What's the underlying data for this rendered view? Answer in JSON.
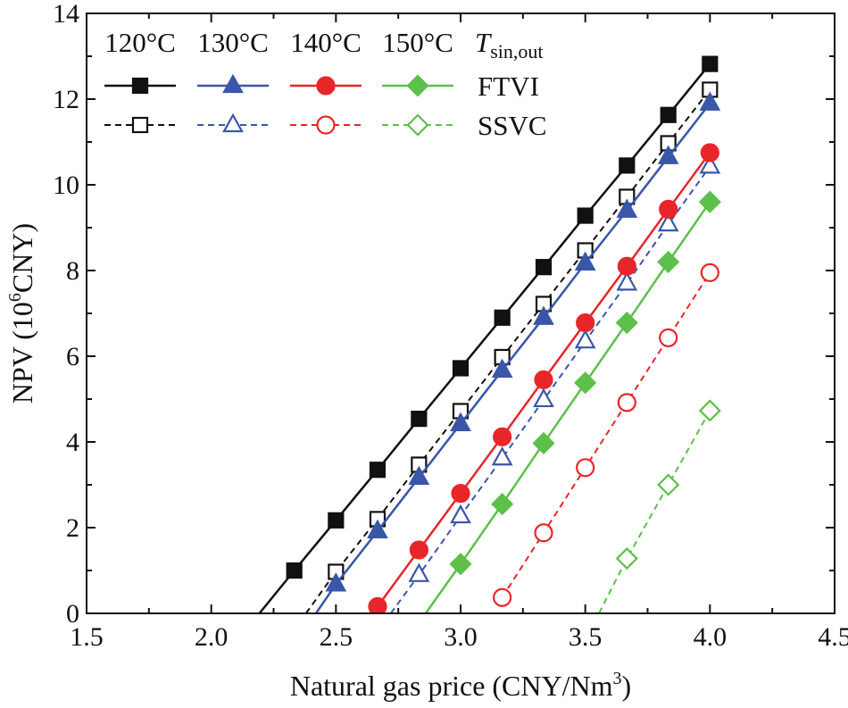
{
  "chart_data": {
    "type": "line",
    "title": "",
    "xlabel": "Natural gas price (CNY/Nm",
    "xlabel_sup": "3",
    "xlabel_end": ")",
    "ylabel": "NPV (10",
    "ylabel_sup": "6",
    "ylabel_end": "CNY)",
    "xlim": [
      1.5,
      4.5
    ],
    "ylim": [
      0,
      14
    ],
    "xticks": [
      1.5,
      2.0,
      2.5,
      3.0,
      3.5,
      4.0,
      4.5
    ],
    "xtick_labels": [
      "1.5",
      "2.0",
      "2.5",
      "3.0",
      "3.5",
      "4.0",
      "4.5"
    ],
    "yticks": [
      0,
      2,
      4,
      6,
      8,
      10,
      12,
      14
    ],
    "ytick_labels": [
      "0",
      "2",
      "4",
      "6",
      "8",
      "10",
      "12",
      "14"
    ],
    "grid": false,
    "legend": {
      "position": "top-left",
      "temperatures": [
        "120°C",
        "130°C",
        "140°C",
        "150°C"
      ],
      "tsin_main": "T",
      "tsin_sub": "sin,out",
      "rows": [
        "FTVI",
        "SSVC"
      ]
    },
    "series": [
      {
        "name": "FTVI 120°C",
        "group": "FTVI",
        "temp": "120°C",
        "color": "#111111",
        "marker": "square",
        "filled": true,
        "dashed": false,
        "line_from": [
          2.193,
          0
        ],
        "x": [
          2.333,
          2.5,
          2.667,
          2.833,
          3.0,
          3.167,
          3.333,
          3.5,
          3.667,
          3.833,
          4.0
        ],
        "y": [
          1.0,
          2.17,
          3.35,
          4.54,
          5.72,
          6.9,
          8.08,
          9.28,
          10.45,
          11.63,
          12.82
        ]
      },
      {
        "name": "SSVC 120°C",
        "group": "SSVC",
        "temp": "120°C",
        "color": "#111111",
        "marker": "square",
        "filled": false,
        "dashed": true,
        "line_from": [
          2.38,
          0
        ],
        "x": [
          2.5,
          2.667,
          2.833,
          3.0,
          3.167,
          3.333,
          3.5,
          3.667,
          3.833,
          4.0
        ],
        "y": [
          0.97,
          2.2,
          3.47,
          4.72,
          5.98,
          7.22,
          8.47,
          9.72,
          10.97,
          12.22
        ]
      },
      {
        "name": "FTVI 130°C",
        "group": "FTVI",
        "temp": "130°C",
        "color": "#3a56a8",
        "marker": "triangle",
        "filled": true,
        "dashed": false,
        "line_from": [
          2.42,
          0
        ],
        "x": [
          2.5,
          2.667,
          2.833,
          3.0,
          3.167,
          3.333,
          3.5,
          3.667,
          3.833,
          4.0
        ],
        "y": [
          0.68,
          1.92,
          3.17,
          4.42,
          5.67,
          6.9,
          8.17,
          9.4,
          10.65,
          11.9
        ]
      },
      {
        "name": "SSVC 130°C",
        "group": "SSVC",
        "temp": "130°C",
        "color": "#3a56a8",
        "marker": "triangle",
        "filled": false,
        "dashed": true,
        "line_from": [
          2.72,
          0
        ],
        "x": [
          2.833,
          3.0,
          3.167,
          3.333,
          3.5,
          3.667,
          3.833,
          4.0
        ],
        "y": [
          0.9,
          2.27,
          3.62,
          4.98,
          6.35,
          7.7,
          9.08,
          10.43
        ]
      },
      {
        "name": "FTVI 140°C",
        "group": "FTVI",
        "temp": "140°C",
        "color": "#e8262a",
        "marker": "circle",
        "filled": true,
        "dashed": false,
        "line_from": null,
        "x": [
          2.667,
          2.833,
          3.0,
          3.167,
          3.333,
          3.5,
          3.667,
          3.833,
          4.0
        ],
        "y": [
          0.16,
          1.48,
          2.8,
          4.12,
          5.45,
          6.78,
          8.1,
          9.43,
          10.75
        ]
      },
      {
        "name": "SSVC 140°C",
        "group": "SSVC",
        "temp": "140°C",
        "color": "#e8262a",
        "marker": "circle",
        "filled": false,
        "dashed": true,
        "line_from": null,
        "x": [
          3.167,
          3.333,
          3.5,
          3.667,
          3.833,
          4.0
        ],
        "y": [
          0.37,
          1.88,
          3.4,
          4.92,
          6.43,
          7.95
        ]
      },
      {
        "name": "FTVI 150°C",
        "group": "FTVI",
        "temp": "150°C",
        "color": "#5cc04a",
        "marker": "diamond",
        "filled": true,
        "dashed": false,
        "line_from": [
          2.86,
          0
        ],
        "x": [
          3.0,
          3.167,
          3.333,
          3.5,
          3.667,
          3.833,
          4.0
        ],
        "y": [
          1.15,
          2.55,
          3.97,
          5.38,
          6.78,
          8.2,
          9.6
        ]
      },
      {
        "name": "SSVC 150°C",
        "group": "SSVC",
        "temp": "150°C",
        "color": "#5cc04a",
        "marker": "diamond",
        "filled": false,
        "dashed": true,
        "line_from": [
          3.555,
          0
        ],
        "x": [
          3.667,
          3.833,
          4.0
        ],
        "y": [
          1.28,
          3.0,
          4.73
        ]
      }
    ]
  }
}
